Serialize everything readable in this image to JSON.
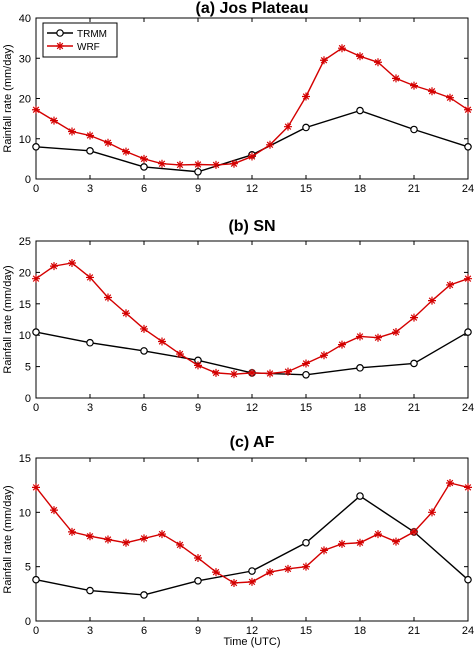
{
  "colors": {
    "trmm": "#000000",
    "wrf": "#d40000",
    "axis": "#000000",
    "grid": "#ffffff"
  },
  "chart_data": [
    {
      "type": "line",
      "title": "(a)  Jos Plateau",
      "xlabel": "",
      "ylabel": "Rainfall rate (mm/day)",
      "xlim": [
        0,
        24
      ],
      "ylim": [
        0,
        40
      ],
      "xticks": [
        0,
        3,
        6,
        9,
        12,
        15,
        18,
        21,
        24
      ],
      "yticks": [
        0,
        10,
        20,
        30,
        40
      ],
      "legend": "top-left",
      "series": [
        {
          "name": "TRMM",
          "marker": "circle",
          "x": [
            0,
            3,
            6,
            9,
            12,
            15,
            18,
            21,
            24
          ],
          "y": [
            8.0,
            7.0,
            3.0,
            1.8,
            6.0,
            12.8,
            17.0,
            12.3,
            8.0
          ]
        },
        {
          "name": "WRF",
          "marker": "star",
          "x": [
            0,
            1,
            2,
            3,
            4,
            5,
            6,
            7,
            8,
            9,
            10,
            11,
            12,
            13,
            14,
            15,
            16,
            17,
            18,
            19,
            20,
            21,
            22,
            23,
            24
          ],
          "y": [
            17.2,
            14.5,
            11.8,
            10.8,
            9.0,
            6.8,
            5.0,
            3.8,
            3.5,
            3.6,
            3.5,
            3.8,
            5.6,
            8.5,
            13.0,
            20.5,
            29.5,
            32.5,
            30.5,
            29.0,
            25.0,
            23.2,
            21.8,
            20.2,
            17.2
          ]
        }
      ]
    },
    {
      "type": "line",
      "title": "(b)  SN",
      "xlabel": "",
      "ylabel": "Rainfall rate (mm/day)",
      "xlim": [
        0,
        24
      ],
      "ylim": [
        0,
        25
      ],
      "xticks": [
        0,
        3,
        6,
        9,
        12,
        15,
        18,
        21,
        24
      ],
      "yticks": [
        0,
        5,
        10,
        15,
        20,
        25
      ],
      "series": [
        {
          "name": "TRMM",
          "marker": "circle",
          "x": [
            0,
            3,
            6,
            9,
            12,
            15,
            18,
            21,
            24
          ],
          "y": [
            10.5,
            8.8,
            7.5,
            6.0,
            4.0,
            3.7,
            4.8,
            5.5,
            10.5
          ]
        },
        {
          "name": "WRF",
          "marker": "star",
          "x": [
            0,
            1,
            2,
            3,
            4,
            5,
            6,
            7,
            8,
            9,
            10,
            11,
            12,
            13,
            14,
            15,
            16,
            17,
            18,
            19,
            20,
            21,
            22,
            23,
            24
          ],
          "y": [
            19.0,
            21.0,
            21.5,
            19.2,
            16.0,
            13.5,
            11.0,
            9.0,
            7.0,
            5.2,
            4.0,
            3.8,
            4.0,
            3.9,
            4.2,
            5.5,
            6.8,
            8.5,
            9.8,
            9.6,
            10.5,
            12.8,
            15.5,
            18.0,
            19.0
          ]
        }
      ]
    },
    {
      "type": "line",
      "title": "(c)  AF",
      "xlabel": "Time (UTC)",
      "ylabel": "Rainfall rate (mm/day)",
      "xlim": [
        0,
        24
      ],
      "ylim": [
        0,
        15
      ],
      "xticks": [
        0,
        3,
        6,
        9,
        12,
        15,
        18,
        21,
        24
      ],
      "yticks": [
        0,
        5,
        10,
        15
      ],
      "series": [
        {
          "name": "TRMM",
          "marker": "circle",
          "x": [
            0,
            3,
            6,
            9,
            12,
            15,
            18,
            21,
            24
          ],
          "y": [
            3.8,
            2.8,
            2.4,
            3.7,
            4.6,
            7.2,
            11.5,
            8.2,
            3.8
          ]
        },
        {
          "name": "WRF",
          "marker": "star",
          "x": [
            0,
            1,
            2,
            3,
            4,
            5,
            6,
            7,
            8,
            9,
            10,
            11,
            12,
            13,
            14,
            15,
            16,
            17,
            18,
            19,
            20,
            21,
            22,
            23,
            24
          ],
          "y": [
            12.3,
            10.2,
            8.2,
            7.8,
            7.5,
            7.2,
            7.6,
            8.0,
            7.0,
            5.8,
            4.5,
            3.5,
            3.6,
            4.5,
            4.8,
            5.0,
            6.5,
            7.1,
            7.2,
            8.0,
            7.3,
            8.2,
            10.0,
            12.7,
            12.3
          ]
        }
      ]
    }
  ]
}
